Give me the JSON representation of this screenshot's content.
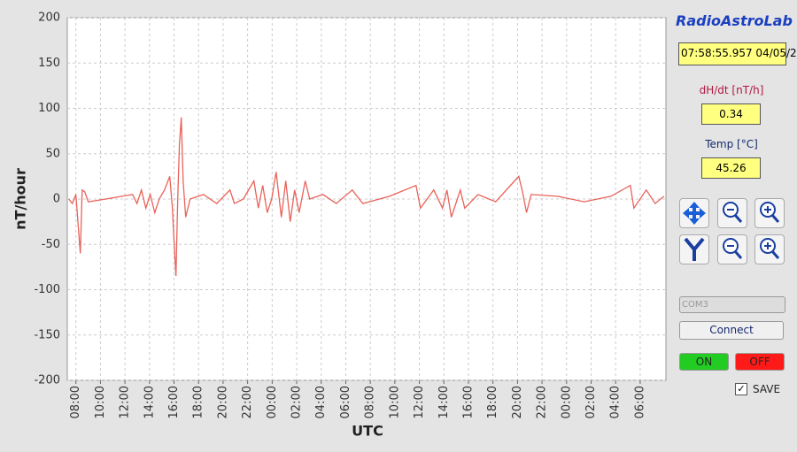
{
  "chart_data": {
    "type": "line",
    "ylabel": "nT/hour",
    "xlabel": "UTC",
    "color": "#e8635a",
    "grid": true,
    "xlim": [
      7.3,
      56.1
    ],
    "ylim": [
      -200,
      200
    ],
    "yticks": [
      -200,
      -150,
      -100,
      -50,
      0,
      50,
      100,
      150,
      200
    ],
    "xticks": [
      {
        "value": 8,
        "label": "08:00"
      },
      {
        "value": 10,
        "label": "10:00"
      },
      {
        "value": 12,
        "label": "12:00"
      },
      {
        "value": 14,
        "label": "14:00"
      },
      {
        "value": 16,
        "label": "16:00"
      },
      {
        "value": 18,
        "label": "18:00"
      },
      {
        "value": 20,
        "label": "20:00"
      },
      {
        "value": 22,
        "label": "22:00"
      },
      {
        "value": 24,
        "label": "00:00"
      },
      {
        "value": 26,
        "label": "02:00"
      },
      {
        "value": 28,
        "label": "04:00"
      },
      {
        "value": 30,
        "label": "06:00"
      },
      {
        "value": 32,
        "label": "08:00"
      },
      {
        "value": 34,
        "label": "10:00"
      },
      {
        "value": 36,
        "label": "12:00"
      },
      {
        "value": 38,
        "label": "14:00"
      },
      {
        "value": 40,
        "label": "16:00"
      },
      {
        "value": 42,
        "label": "18:00"
      },
      {
        "value": 44,
        "label": "20:00"
      },
      {
        "value": 46,
        "label": "22:00"
      },
      {
        "value": 48,
        "label": "00:00"
      },
      {
        "value": 50,
        "label": "02:00"
      },
      {
        "value": 52,
        "label": "04:00"
      },
      {
        "value": 54,
        "label": "06:00"
      }
    ],
    "x": [
      7.42,
      7.71,
      8.0,
      8.14,
      8.36,
      8.51,
      8.72,
      9.01,
      10.45,
      12.62,
      12.98,
      13.34,
      13.7,
      14.06,
      14.43,
      14.79,
      15.22,
      15.65,
      15.87,
      16.01,
      16.16,
      16.3,
      16.44,
      16.59,
      16.74,
      16.95,
      17.31,
      18.4,
      19.48,
      20.56,
      20.92,
      21.65,
      22.51,
      22.87,
      23.23,
      23.6,
      23.96,
      24.32,
      24.75,
      25.11,
      25.47,
      25.83,
      26.2,
      26.7,
      27.06,
      28.14,
      29.23,
      30.53,
      31.39,
      33.56,
      35.73,
      36.09,
      37.17,
      37.89,
      38.25,
      38.61,
      39.34,
      39.7,
      40.78,
      42.22,
      44.1,
      44.38,
      44.74,
      45.11,
      47.28,
      49.44,
      51.61,
      53.2,
      53.49,
      54.5,
      55.22,
      55.94
    ],
    "values": [
      0,
      -5,
      5,
      -20,
      -60,
      10,
      8,
      -3,
      0,
      5,
      -5,
      10,
      -10,
      5,
      -15,
      0,
      10,
      25,
      -10,
      -50,
      -85,
      0,
      60,
      90,
      20,
      -20,
      0,
      5,
      -5,
      10,
      -5,
      0,
      20,
      -10,
      15,
      -15,
      0,
      30,
      -20,
      20,
      -25,
      10,
      -15,
      20,
      0,
      5,
      -5,
      10,
      -5,
      3,
      15,
      -10,
      10,
      -10,
      10,
      -20,
      10,
      -10,
      5,
      -3,
      25,
      10,
      -15,
      5,
      3,
      -3,
      3,
      15,
      -10,
      10,
      -5,
      3
    ]
  },
  "panel": {
    "logo": "RadioAstroLab",
    "datetime": "07:58:55.957 04/05/2",
    "dhdt_label": "dH/dt [nT/h]",
    "dhdt_value": "0.34",
    "temp_label": "Temp [°C]",
    "temp_value": "45.26",
    "port": "COM3",
    "connect": "Connect",
    "on": "ON",
    "off": "OFF",
    "save": "SAVE"
  }
}
